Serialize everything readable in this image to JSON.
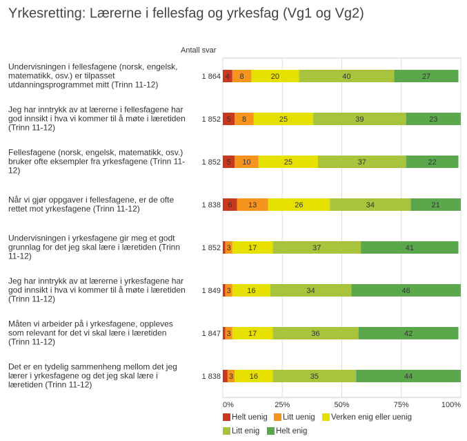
{
  "chart_data": {
    "type": "stacked-bar",
    "title": "Yrkesretting: Lærerne i fellesfag og yrkesfag (Vg1 og Vg2)",
    "categories": [
      "Undervisningen i fellesfagene (norsk, engelsk, matematikk, osv.) er tilpasset utdanningsprogrammet mitt (Trinn 11-12)",
      "Jeg har inntrykk av at lærerne i fellesfagene har god innsikt i hva vi kommer til å møte i læretiden (Trinn 11-12)",
      "Fellesfagene (norsk, engelsk, matematikk, osv.) bruker ofte eksempler fra yrkesfagene (Trinn 11-12)",
      "Når vi gjør oppgaver i fellesfagene, er de ofte rettet mot yrkesfagene (Trinn 11-12)",
      "Undervisningen i yrkesfagene gir meg et godt grunnlag for det jeg skal lære i læretiden (Trinn 11-12)",
      "Jeg har inntrykk av at lærerne i yrkesfagene har god innsikt i hva vi kommer til å møte i læretiden (Trinn 11-12)",
      "Måten vi arbeider på i yrkesfagene, oppleves som relevant for det vi skal lære i læretiden (Trinn 11-12)",
      "Det er en tydelig sammenheng mellom det jeg lærer i yrkesfagene og det jeg skal lære i læretiden (Trinn 11-12)"
    ],
    "responses": {
      "name": "Antall svar",
      "values": [
        1864,
        1852,
        1852,
        1838,
        1852,
        1849,
        1847,
        1838
      ],
      "value_labels": [
        "1 864",
        "1 852",
        "1 852",
        "1 838",
        "1 852",
        "1 849",
        "1 847",
        "1 838"
      ]
    },
    "series": [
      {
        "name": "Helt uenig",
        "color": "#c8381e",
        "values": [
          4,
          5,
          5,
          6,
          1,
          1,
          1,
          2
        ]
      },
      {
        "name": "Litt uenig",
        "color": "#f7941d",
        "values": [
          8,
          8,
          10,
          13,
          3,
          3,
          3,
          3
        ]
      },
      {
        "name": "Verken enig eller uenig",
        "color": "#e5e000",
        "values": [
          20,
          25,
          25,
          26,
          17,
          16,
          17,
          16
        ]
      },
      {
        "name": "Litt enig",
        "color": "#a8c43c",
        "values": [
          40,
          39,
          37,
          34,
          37,
          34,
          36,
          35
        ]
      },
      {
        "name": "Helt enig",
        "color": "#5ba84c",
        "values": [
          27,
          23,
          22,
          21,
          41,
          46,
          42,
          44
        ]
      }
    ],
    "xlim": [
      0,
      100
    ],
    "xticks": [
      {
        "value": 0,
        "label": "0%"
      },
      {
        "value": 25,
        "label": "25%"
      },
      {
        "value": 50,
        "label": "50%"
      },
      {
        "value": 75,
        "label": "75%"
      },
      {
        "value": 100,
        "label": "100%"
      }
    ],
    "grid": true
  }
}
